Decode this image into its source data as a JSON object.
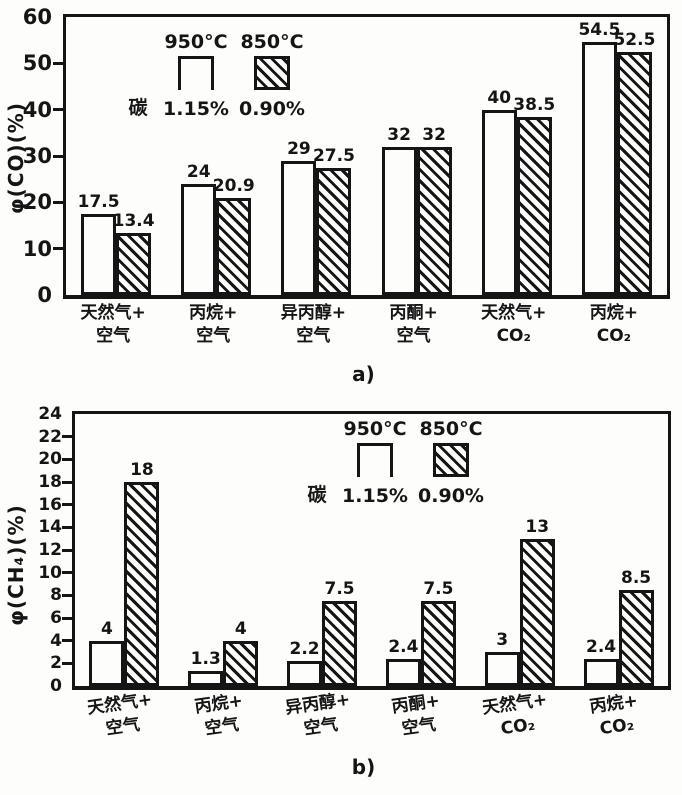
{
  "colors": {
    "ink": "#151515",
    "background": "#fdfdfb"
  },
  "chart_data": [
    {
      "id": "a",
      "type": "bar",
      "caption": "a)",
      "ylabel": "φ(CO)(%)",
      "ymax": 60,
      "ylim": [
        0,
        60
      ],
      "yticks": [
        60,
        50,
        40,
        30,
        20,
        10,
        0
      ],
      "grid": false,
      "legend_position": "top-left-inside",
      "legend": {
        "series1": "950°C",
        "series2": "850°C",
        "carbon_label": "碳",
        "carbon1": "1.15%",
        "carbon2": "0.90%"
      },
      "categories": [
        "天然气+\n空气",
        "丙烷+\n空气",
        "异丙醇+\n空气",
        "丙酮+\n空气",
        "天然气+\nCO₂",
        "丙烷+\nCO₂"
      ],
      "series": [
        {
          "name": "950°C",
          "style": "open",
          "values": [
            17.5,
            24,
            29,
            32,
            40,
            54.5
          ]
        },
        {
          "name": "850°C",
          "style": "hatched",
          "values": [
            13.4,
            20.9,
            27.5,
            32,
            38.5,
            52.5
          ]
        }
      ]
    },
    {
      "id": "b",
      "type": "bar",
      "caption": "b)",
      "ylabel": "φ(CH₄)(%)",
      "ymax": 24,
      "ylim": [
        0,
        24
      ],
      "yticks": [
        24,
        22,
        20,
        18,
        16,
        14,
        12,
        10,
        8,
        6,
        4,
        2,
        0
      ],
      "grid": false,
      "legend_position": "top-center-inside",
      "legend": {
        "series1": "950°C",
        "series2": "850°C",
        "carbon_label": "碳",
        "carbon1": "1.15%",
        "carbon2": "0.90%"
      },
      "categories": [
        "天然气+\n空气",
        "丙烷+\n空气",
        "异丙醇+\n空气",
        "丙酮+\n空气",
        "天然气+\nCO₂",
        "丙烷+\nCO₂"
      ],
      "series": [
        {
          "name": "950°C",
          "style": "open",
          "values": [
            4,
            1.3,
            2.2,
            2.4,
            3,
            2.4
          ]
        },
        {
          "name": "850°C",
          "style": "hatched",
          "values": [
            18,
            4,
            7.5,
            7.5,
            13,
            8.5
          ]
        }
      ]
    }
  ]
}
